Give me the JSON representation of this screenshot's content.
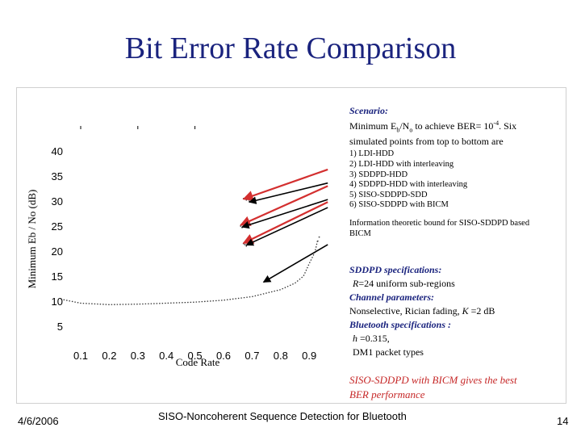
{
  "title": "Bit Error Rate Comparison",
  "chart_data": {
    "type": "line",
    "xlabel": "Code Rate",
    "ylabel": "Minimum Eb / No (dB)",
    "x_ticks": [
      "0.1",
      "0.2",
      "0.3",
      "0.4",
      "0.5",
      "0.6",
      "0.7",
      "0.8",
      "0.9"
    ],
    "y_ticks": [
      "5",
      "10",
      "15",
      "20",
      "25",
      "30",
      "35",
      "40"
    ],
    "xlim": [
      0.03,
      0.98
    ],
    "ylim": [
      3,
      44
    ],
    "series": [
      {
        "name": "Information theoretic bound for SISO-SDDPD based BICM",
        "style": "dotted",
        "x": [
          0.03,
          0.1,
          0.2,
          0.3,
          0.4,
          0.5,
          0.6,
          0.7,
          0.8,
          0.85,
          0.88,
          0.9,
          0.92,
          0.93
        ],
        "y": [
          10.4,
          9.6,
          9.3,
          9.4,
          9.6,
          9.8,
          10.2,
          10.9,
          12.3,
          13.6,
          15.0,
          17.5,
          19.8,
          22.3
        ]
      }
    ],
    "points": [
      {
        "x": 0.67,
        "y": 30.5
      },
      {
        "x": 0.68,
        "y": 30.2
      },
      {
        "x": 0.69,
        "y": 30.0
      },
      {
        "x": 0.66,
        "y": 25.0
      },
      {
        "x": 0.665,
        "y": 24.7
      },
      {
        "x": 0.67,
        "y": 21.5
      },
      {
        "x": 0.675,
        "y": 21.3
      },
      {
        "x": 0.68,
        "y": 21.0
      },
      {
        "x": 0.93,
        "y": 22.0
      },
      {
        "x": 0.935,
        "y": 22.8
      }
    ],
    "top_ticks_x": [
      0.1,
      0.3,
      0.5
    ],
    "arrows": [
      {
        "color": "#d32f2f",
        "from": [
          0.965,
          36.3
        ],
        "to": [
          0.67,
          30.4
        ]
      },
      {
        "color": "#000000",
        "from": [
          0.965,
          33.6
        ],
        "to": [
          0.69,
          29.8
        ]
      },
      {
        "color": "#d32f2f",
        "from": [
          0.965,
          33.0
        ],
        "to": [
          0.66,
          25.2
        ]
      },
      {
        "color": "#000000",
        "from": [
          0.965,
          30.3
        ],
        "to": [
          0.665,
          24.8
        ]
      },
      {
        "color": "#d32f2f",
        "from": [
          0.965,
          29.8
        ],
        "to": [
          0.67,
          21.6
        ]
      },
      {
        "color": "#000000",
        "from": [
          0.965,
          28.7
        ],
        "to": [
          0.68,
          21.2
        ]
      },
      {
        "color": "#000000",
        "from": [
          0.965,
          21.3
        ],
        "to": [
          0.74,
          13.8
        ]
      }
    ]
  },
  "scenario": {
    "heading": "Scenario:",
    "line1": "Minimum E",
    "sub_b": "b",
    "slash_n": "/N",
    "sub_o": "o",
    "line1_rest": " to achieve BER= 10",
    "exp": "-4",
    "line1_end": ". Six",
    "line2": "simulated points from top to bottom are",
    "items": [
      "1) LDI-HDD",
      "2) LDI-HDD with interleaving",
      "3) SDDPD-HDD",
      "4) SDDPD-HDD with interleaving",
      "5) SISO-SDDPD-SDD",
      "6) SISO-SDDPD with BICM"
    ],
    "bound_line1": "Information theoretic bound for SISO-SDDPD based",
    "bound_line2": "BICM"
  },
  "specs": {
    "sddpd_heading": "SDDPD specifications:",
    "r_var": "R",
    "r_rest": "=24 uniform sub-regions",
    "channel_heading": "Channel parameters:",
    "channel_text": "Nonselective, Rician fading, ",
    "k_var": "K",
    "k_rest": " =2 dB",
    "bt_heading": "Bluetooth specifications :",
    "h_var": "h",
    "h_rest": " =0.315,",
    "packet": "DM1 packet types"
  },
  "conclusion": {
    "line1": "SISO-SDDPD with BICM gives the best",
    "line2": "BER performance"
  },
  "footer": {
    "date": "4/6/2006",
    "center": "SISO-Noncoherent Sequence  Detection for Bluetooth",
    "page": "14"
  }
}
